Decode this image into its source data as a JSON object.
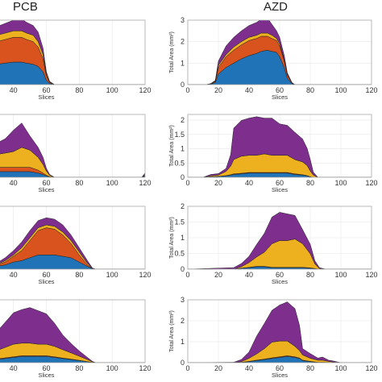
{
  "columns": [
    "PCB",
    "AZD"
  ],
  "colors": {
    "blue": "#1f73b6",
    "orange": "#d9531e",
    "yellow": "#edb120",
    "purple": "#7e2f8e"
  },
  "chart_data": [
    {
      "type": "area",
      "column": "PCB",
      "row": 1,
      "xlabel": "Slices",
      "ylabel": "",
      "xlim": [
        0,
        120
      ],
      "ylim": [
        0,
        3
      ],
      "xticks": [
        40,
        60,
        80,
        100,
        120
      ],
      "yticks": [],
      "x": [
        0,
        15,
        20,
        25,
        30,
        35,
        40,
        45,
        48,
        52,
        55,
        58,
        60,
        62,
        65,
        70,
        80,
        100,
        120
      ],
      "series": [
        {
          "color": "blue",
          "values": [
            0.8,
            0.8,
            0.85,
            0.9,
            0.95,
            1.0,
            1.05,
            1.05,
            1.0,
            0.95,
            0.85,
            0.6,
            0.2,
            0.05,
            0,
            0,
            0,
            0,
            0
          ]
        },
        {
          "color": "orange",
          "values": [
            0.9,
            0.9,
            0.95,
            1.0,
            1.05,
            1.1,
            1.15,
            1.15,
            1.1,
            1.05,
            0.9,
            0.6,
            0.2,
            0.05,
            0,
            0,
            0,
            0,
            0
          ]
        },
        {
          "color": "yellow",
          "values": [
            0.2,
            0.2,
            0.2,
            0.25,
            0.3,
            0.3,
            0.3,
            0.3,
            0.3,
            0.3,
            0.25,
            0.2,
            0.1,
            0.02,
            0,
            0,
            0,
            0,
            0
          ]
        },
        {
          "color": "purple",
          "values": [
            0.3,
            0.3,
            0.3,
            0.35,
            0.4,
            0.45,
            0.5,
            0.55,
            0.5,
            0.45,
            0.45,
            0.3,
            0.1,
            0.03,
            0,
            0,
            0,
            0,
            0
          ]
        }
      ]
    },
    {
      "type": "area",
      "column": "AZD",
      "row": 1,
      "xlabel": "Slices",
      "ylabel": "Total Area (mm²)",
      "xlim": [
        0,
        120
      ],
      "ylim": [
        0,
        3
      ],
      "xticks": [
        0,
        20,
        40,
        60,
        80,
        100,
        120
      ],
      "yticks": [
        0,
        1,
        2,
        3
      ],
      "x": [
        0,
        12,
        15,
        18,
        20,
        25,
        30,
        35,
        40,
        45,
        48,
        52,
        55,
        58,
        60,
        63,
        65,
        68,
        70,
        80,
        120
      ],
      "series": [
        {
          "color": "blue",
          "values": [
            0,
            0,
            0.02,
            0.1,
            0.5,
            0.8,
            1.0,
            1.2,
            1.35,
            1.45,
            1.55,
            1.6,
            1.55,
            1.5,
            1.3,
            0.8,
            0.3,
            0.05,
            0,
            0,
            0
          ]
        },
        {
          "color": "orange",
          "values": [
            0,
            0,
            0.01,
            0.05,
            0.3,
            0.5,
            0.6,
            0.65,
            0.7,
            0.7,
            0.7,
            0.65,
            0.6,
            0.55,
            0.5,
            0.3,
            0.15,
            0.02,
            0,
            0,
            0
          ]
        },
        {
          "color": "yellow",
          "values": [
            0,
            0,
            0.01,
            0.02,
            0.1,
            0.1,
            0.15,
            0.15,
            0.15,
            0.15,
            0.15,
            0.15,
            0.15,
            0.1,
            0.1,
            0.05,
            0.02,
            0,
            0,
            0,
            0
          ]
        },
        {
          "color": "purple",
          "values": [
            0,
            0,
            0.01,
            0.03,
            0.2,
            0.4,
            0.45,
            0.5,
            0.55,
            0.6,
            0.65,
            0.7,
            0.5,
            0.35,
            0.3,
            0.2,
            0.08,
            0.03,
            0,
            0,
            0
          ]
        }
      ]
    },
    {
      "type": "area",
      "column": "PCB",
      "row": 2,
      "xlabel": "Slices",
      "ylabel": "",
      "xlim": [
        0,
        120
      ],
      "ylim": [
        0,
        2.2
      ],
      "xticks": [
        40,
        60,
        80,
        100,
        120
      ],
      "yticks": [],
      "x": [
        0,
        15,
        25,
        30,
        35,
        40,
        45,
        50,
        55,
        58,
        60,
        62,
        65,
        70,
        100,
        118,
        120
      ],
      "series": [
        {
          "color": "blue",
          "values": [
            0.1,
            0.15,
            0.2,
            0.2,
            0.2,
            0.2,
            0.2,
            0.2,
            0.15,
            0.1,
            0.05,
            0.02,
            0,
            0,
            0,
            0,
            0.05
          ]
        },
        {
          "color": "orange",
          "values": [
            0.1,
            0.15,
            0.15,
            0.15,
            0.15,
            0.15,
            0.15,
            0.15,
            0.1,
            0.05,
            0.02,
            0,
            0,
            0,
            0,
            0,
            0.02
          ]
        },
        {
          "color": "yellow",
          "values": [
            0.15,
            0.3,
            0.4,
            0.45,
            0.5,
            0.55,
            0.7,
            0.6,
            0.45,
            0.3,
            0.15,
            0.05,
            0,
            0,
            0,
            0,
            0.03
          ]
        },
        {
          "color": "purple",
          "values": [
            0.15,
            0.25,
            0.35,
            0.4,
            0.5,
            0.75,
            0.85,
            0.5,
            0.35,
            0.25,
            0.1,
            0.03,
            0,
            0,
            0,
            0,
            0.05
          ]
        }
      ]
    },
    {
      "type": "area",
      "column": "AZD",
      "row": 2,
      "xlabel": "Slices",
      "ylabel": "Total Area (mm²)",
      "xlim": [
        0,
        120
      ],
      "ylim": [
        0,
        2.2
      ],
      "xticks": [
        0,
        20,
        40,
        60,
        80,
        100,
        120
      ],
      "yticks": [
        0,
        0.5,
        1,
        1.5,
        2
      ],
      "x": [
        0,
        10,
        15,
        20,
        25,
        28,
        30,
        35,
        40,
        45,
        50,
        55,
        60,
        65,
        70,
        75,
        78,
        80,
        82,
        85,
        120
      ],
      "series": [
        {
          "color": "blue",
          "values": [
            0,
            0,
            0.02,
            0.03,
            0.05,
            0.08,
            0.1,
            0.12,
            0.15,
            0.15,
            0.15,
            0.15,
            0.15,
            0.15,
            0.1,
            0.08,
            0.05,
            0.02,
            0,
            0,
            0
          ]
        },
        {
          "color": "orange",
          "values": [
            0,
            0,
            0,
            0,
            0.01,
            0.01,
            0.02,
            0.02,
            0.02,
            0.02,
            0.02,
            0.02,
            0.02,
            0.02,
            0.02,
            0.01,
            0.01,
            0,
            0,
            0,
            0
          ]
        },
        {
          "color": "yellow",
          "values": [
            0,
            0,
            0.03,
            0.05,
            0.15,
            0.3,
            0.5,
            0.6,
            0.6,
            0.6,
            0.65,
            0.6,
            0.6,
            0.6,
            0.5,
            0.45,
            0.35,
            0.2,
            0.08,
            0,
            0
          ]
        },
        {
          "color": "purple",
          "values": [
            0,
            0,
            0.05,
            0.05,
            0.1,
            0.4,
            1.1,
            1.25,
            1.3,
            1.35,
            1.25,
            1.3,
            1.1,
            1.05,
            0.95,
            0.8,
            0.6,
            0.4,
            0.1,
            0,
            0
          ]
        }
      ]
    },
    {
      "type": "area",
      "column": "PCB",
      "row": 3,
      "xlabel": "Slices",
      "ylabel": "",
      "xlim": [
        0,
        120
      ],
      "ylim": [
        0,
        2.2
      ],
      "xticks": [
        40,
        60,
        80,
        100,
        120
      ],
      "yticks": [],
      "x": [
        0,
        20,
        30,
        35,
        40,
        45,
        50,
        55,
        60,
        65,
        70,
        75,
        80,
        85,
        88,
        90,
        120
      ],
      "series": [
        {
          "color": "blue",
          "values": [
            0,
            0.05,
            0.1,
            0.15,
            0.25,
            0.3,
            0.4,
            0.5,
            0.5,
            0.5,
            0.45,
            0.4,
            0.25,
            0.1,
            0.02,
            0,
            0
          ]
        },
        {
          "color": "orange",
          "values": [
            0,
            0.02,
            0.05,
            0.1,
            0.2,
            0.35,
            0.6,
            0.85,
            0.95,
            0.9,
            0.75,
            0.5,
            0.25,
            0.05,
            0,
            0,
            0
          ]
        },
        {
          "color": "yellow",
          "values": [
            0,
            0,
            0.02,
            0.05,
            0.05,
            0.1,
            0.1,
            0.1,
            0.1,
            0.1,
            0.1,
            0.1,
            0.1,
            0.05,
            0,
            0,
            0
          ]
        },
        {
          "color": "purple",
          "values": [
            0,
            0,
            0.05,
            0.1,
            0.15,
            0.2,
            0.25,
            0.25,
            0.25,
            0.25,
            0.25,
            0.2,
            0.15,
            0.1,
            0.02,
            0,
            0
          ]
        }
      ]
    },
    {
      "type": "area",
      "column": "AZD",
      "row": 3,
      "xlabel": "Slices",
      "ylabel": "Total Area (mm²)",
      "xlim": [
        0,
        120
      ],
      "ylim": [
        0,
        2
      ],
      "xticks": [
        0,
        20,
        40,
        60,
        80,
        100,
        120
      ],
      "yticks": [
        0,
        0.5,
        1,
        1.5,
        2
      ],
      "x": [
        0,
        30,
        35,
        40,
        45,
        50,
        55,
        60,
        65,
        70,
        75,
        80,
        83,
        86,
        90,
        120
      ],
      "series": [
        {
          "color": "blue",
          "values": [
            0,
            0,
            0.03,
            0.05,
            0.08,
            0.08,
            0.05,
            0.05,
            0.05,
            0.05,
            0.05,
            0.03,
            0.02,
            0,
            0,
            0
          ]
        },
        {
          "color": "orange",
          "values": [
            0,
            0,
            0,
            0.01,
            0.01,
            0.01,
            0.01,
            0.01,
            0.01,
            0.01,
            0.01,
            0.01,
            0,
            0,
            0,
            0
          ]
        },
        {
          "color": "yellow",
          "values": [
            0,
            0,
            0.05,
            0.15,
            0.3,
            0.45,
            0.75,
            0.85,
            0.85,
            0.9,
            0.75,
            0.45,
            0.15,
            0.02,
            0,
            0
          ]
        },
        {
          "color": "purple",
          "values": [
            0,
            0.05,
            0.1,
            0.2,
            0.4,
            0.6,
            0.85,
            0.9,
            0.85,
            0.75,
            0.45,
            0.3,
            0.1,
            0.03,
            0,
            0
          ]
        }
      ]
    },
    {
      "type": "area",
      "column": "PCB",
      "row": 4,
      "xlabel": "Slices",
      "ylabel": "",
      "xlim": [
        0,
        120
      ],
      "ylim": [
        0,
        3
      ],
      "xticks": [
        40,
        60,
        80,
        100,
        120
      ],
      "yticks": [],
      "x": [
        0,
        20,
        30,
        35,
        40,
        45,
        50,
        55,
        60,
        65,
        70,
        75,
        80,
        85,
        88,
        90,
        120
      ],
      "series": [
        {
          "color": "blue",
          "values": [
            0.1,
            0.1,
            0.15,
            0.2,
            0.25,
            0.3,
            0.3,
            0.3,
            0.3,
            0.25,
            0.2,
            0.15,
            0.1,
            0.05,
            0.01,
            0,
            0
          ]
        },
        {
          "color": "orange",
          "values": [
            0.02,
            0.02,
            0.03,
            0.03,
            0.03,
            0.03,
            0.03,
            0.03,
            0.03,
            0.03,
            0.02,
            0.02,
            0.01,
            0,
            0,
            0,
            0
          ]
        },
        {
          "color": "yellow",
          "values": [
            0.3,
            0.3,
            0.4,
            0.5,
            0.6,
            0.6,
            0.6,
            0.55,
            0.55,
            0.5,
            0.4,
            0.3,
            0.2,
            0.1,
            0.03,
            0,
            0
          ]
        },
        {
          "color": "purple",
          "values": [
            0.8,
            0.8,
            0.9,
            1.2,
            1.5,
            1.6,
            1.7,
            1.6,
            1.45,
            1.1,
            0.7,
            0.45,
            0.25,
            0.1,
            0.02,
            0,
            0
          ]
        }
      ]
    },
    {
      "type": "area",
      "column": "AZD",
      "row": 4,
      "xlabel": "Slices",
      "ylabel": "Total Area (mm²)",
      "xlim": [
        0,
        120
      ],
      "ylim": [
        0,
        3
      ],
      "xticks": [
        0,
        20,
        40,
        60,
        80,
        100,
        120
      ],
      "yticks": [
        0,
        1,
        2,
        3
      ],
      "x": [
        0,
        30,
        35,
        40,
        45,
        50,
        55,
        60,
        65,
        70,
        73,
        75,
        80,
        85,
        88,
        92,
        95,
        98,
        100,
        120
      ],
      "series": [
        {
          "color": "blue",
          "values": [
            0,
            0,
            0.02,
            0.05,
            0.1,
            0.15,
            0.2,
            0.25,
            0.3,
            0.25,
            0.2,
            0.1,
            0.05,
            0.02,
            0.02,
            0.01,
            0,
            0,
            0,
            0
          ]
        },
        {
          "color": "orange",
          "values": [
            0,
            0,
            0,
            0.01,
            0.02,
            0.02,
            0.03,
            0.03,
            0.03,
            0.03,
            0.02,
            0.02,
            0.01,
            0,
            0,
            0,
            0,
            0,
            0,
            0
          ]
        },
        {
          "color": "yellow",
          "values": [
            0,
            0,
            0.03,
            0.15,
            0.3,
            0.5,
            0.75,
            0.75,
            0.7,
            0.5,
            0.35,
            0.25,
            0.15,
            0.1,
            0.1,
            0.05,
            0.03,
            0,
            0,
            0
          ]
        },
        {
          "color": "purple",
          "values": [
            0,
            0.02,
            0.1,
            0.3,
            0.85,
            1.2,
            1.52,
            1.72,
            1.87,
            1.8,
            1.2,
            0.3,
            0.22,
            0.1,
            0.15,
            0.06,
            0.05,
            0.03,
            0,
            0
          ]
        }
      ]
    }
  ]
}
